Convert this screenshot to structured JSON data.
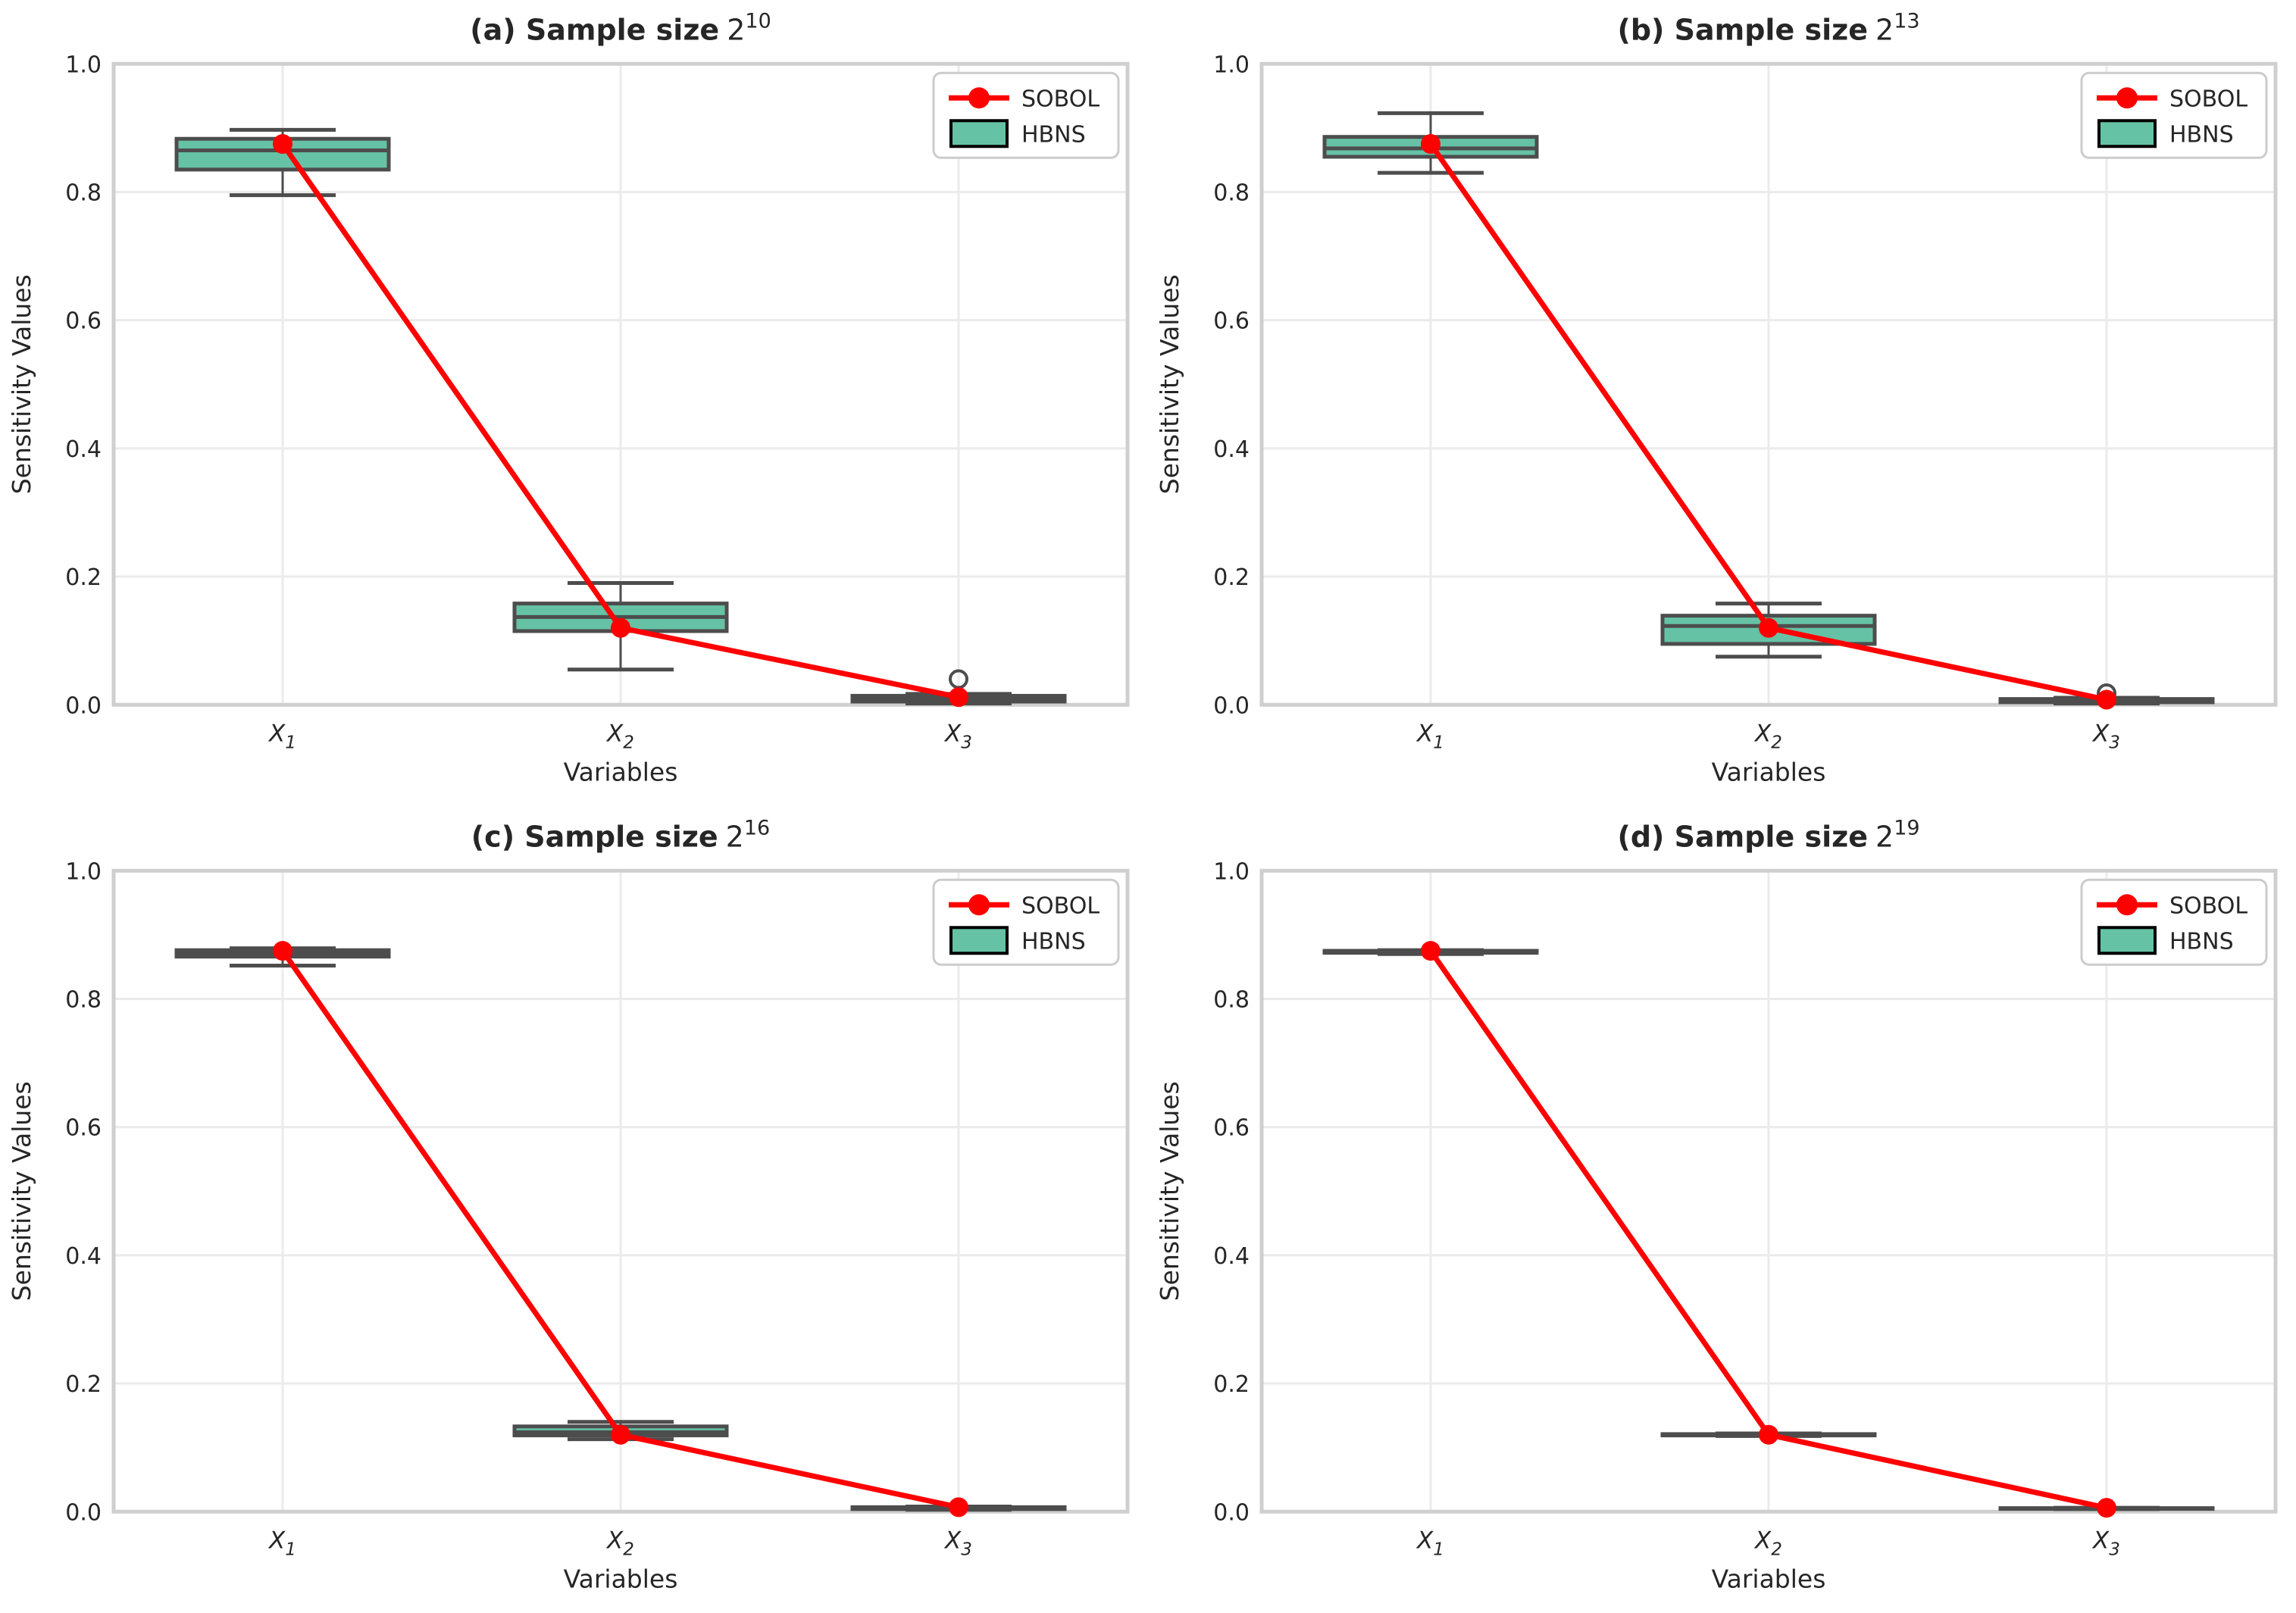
{
  "figure": {
    "ylabel": "Sensitivity Values",
    "xlabel": "Variables",
    "legend": {
      "series_label": "SOBOL",
      "box_label": "HBNS"
    }
  },
  "colors": {
    "sobol_red": "#FF0000",
    "box_fill": "#66C2A5",
    "box_edge": "#4D4D4D",
    "grid": "#EBEBEB",
    "spine": "#CFCFCF",
    "text": "#262626",
    "legend_border": "#CCCCCC",
    "legend_bg": "#FFFFFF"
  },
  "chart_data": [
    {
      "type": "box",
      "panel_id": "a",
      "title": {
        "label": "(a) Sample size",
        "base": "2",
        "exponent": "10"
      },
      "categories": [
        {
          "base": "X",
          "sub": "1"
        },
        {
          "base": "X",
          "sub": "2"
        },
        {
          "base": "X",
          "sub": "3"
        }
      ],
      "xlabel": "Variables",
      "ylabel": "Sensitivity Values",
      "ylim": [
        0,
        1
      ],
      "yticks": [
        0.0,
        0.2,
        0.4,
        0.6,
        0.8,
        1.0
      ],
      "grid": true,
      "legend_position": "upper right",
      "boxes": [
        {
          "whisker_low": 0.795,
          "q1": 0.835,
          "median": 0.865,
          "q3": 0.883,
          "whisker_high": 0.897,
          "outliers": []
        },
        {
          "whisker_low": 0.055,
          "q1": 0.115,
          "median": 0.137,
          "q3": 0.158,
          "whisker_high": 0.19,
          "outliers": []
        },
        {
          "whisker_low": 0.002,
          "q1": 0.005,
          "median": 0.009,
          "q3": 0.014,
          "whisker_high": 0.017,
          "outliers": [
            0.04
          ]
        }
      ],
      "series": [
        {
          "name": "SOBOL",
          "values": [
            0.875,
            0.12,
            0.012
          ]
        }
      ]
    },
    {
      "type": "box",
      "panel_id": "b",
      "title": {
        "label": "(b) Sample size",
        "base": "2",
        "exponent": "13"
      },
      "categories": [
        {
          "base": "X",
          "sub": "1"
        },
        {
          "base": "X",
          "sub": "2"
        },
        {
          "base": "X",
          "sub": "3"
        }
      ],
      "xlabel": "Variables",
      "ylabel": "Sensitivity Values",
      "ylim": [
        0,
        1
      ],
      "yticks": [
        0.0,
        0.2,
        0.4,
        0.6,
        0.8,
        1.0
      ],
      "grid": true,
      "legend_position": "upper right",
      "boxes": [
        {
          "whisker_low": 0.83,
          "q1": 0.855,
          "median": 0.868,
          "q3": 0.886,
          "whisker_high": 0.923,
          "outliers": []
        },
        {
          "whisker_low": 0.075,
          "q1": 0.095,
          "median": 0.123,
          "q3": 0.139,
          "whisker_high": 0.158,
          "outliers": []
        },
        {
          "whisker_low": 0.002,
          "q1": 0.004,
          "median": 0.006,
          "q3": 0.009,
          "whisker_high": 0.011,
          "outliers": [
            0.018
          ]
        }
      ],
      "series": [
        {
          "name": "SOBOL",
          "values": [
            0.875,
            0.12,
            0.008
          ]
        }
      ]
    },
    {
      "type": "box",
      "panel_id": "c",
      "title": {
        "label": "(c) Sample size",
        "base": "2",
        "exponent": "16"
      },
      "categories": [
        {
          "base": "X",
          "sub": "1"
        },
        {
          "base": "X",
          "sub": "2"
        },
        {
          "base": "X",
          "sub": "3"
        }
      ],
      "xlabel": "Variables",
      "ylabel": "Sensitivity Values",
      "ylim": [
        0,
        1
      ],
      "yticks": [
        0.0,
        0.2,
        0.4,
        0.6,
        0.8,
        1.0
      ],
      "grid": true,
      "legend_position": "upper right",
      "boxes": [
        {
          "whisker_low": 0.852,
          "q1": 0.866,
          "median": 0.871,
          "q3": 0.876,
          "whisker_high": 0.879,
          "outliers": []
        },
        {
          "whisker_low": 0.113,
          "q1": 0.119,
          "median": 0.124,
          "q3": 0.133,
          "whisker_high": 0.14,
          "outliers": []
        },
        {
          "whisker_low": 0.003,
          "q1": 0.004,
          "median": 0.006,
          "q3": 0.007,
          "whisker_high": 0.008,
          "outliers": []
        }
      ],
      "series": [
        {
          "name": "SOBOL",
          "values": [
            0.875,
            0.12,
            0.007
          ]
        }
      ]
    },
    {
      "type": "box",
      "panel_id": "d",
      "title": {
        "label": "(d) Sample size",
        "base": "2",
        "exponent": "19"
      },
      "categories": [
        {
          "base": "X",
          "sub": "1"
        },
        {
          "base": "X",
          "sub": "2"
        },
        {
          "base": "X",
          "sub": "3"
        }
      ],
      "xlabel": "Variables",
      "ylabel": "Sensitivity Values",
      "ylim": [
        0,
        1
      ],
      "yticks": [
        0.0,
        0.2,
        0.4,
        0.6,
        0.8,
        1.0
      ],
      "grid": true,
      "legend_position": "upper right",
      "boxes": [
        {
          "whisker_low": 0.87,
          "q1": 0.872,
          "median": 0.873,
          "q3": 0.875,
          "whisker_high": 0.876,
          "outliers": []
        },
        {
          "whisker_low": 0.118,
          "q1": 0.119,
          "median": 0.12,
          "q3": 0.121,
          "whisker_high": 0.122,
          "outliers": []
        },
        {
          "whisker_low": 0.004,
          "q1": 0.0045,
          "median": 0.005,
          "q3": 0.0055,
          "whisker_high": 0.006,
          "outliers": []
        }
      ],
      "series": [
        {
          "name": "SOBOL",
          "values": [
            0.875,
            0.12,
            0.006
          ]
        }
      ]
    }
  ]
}
